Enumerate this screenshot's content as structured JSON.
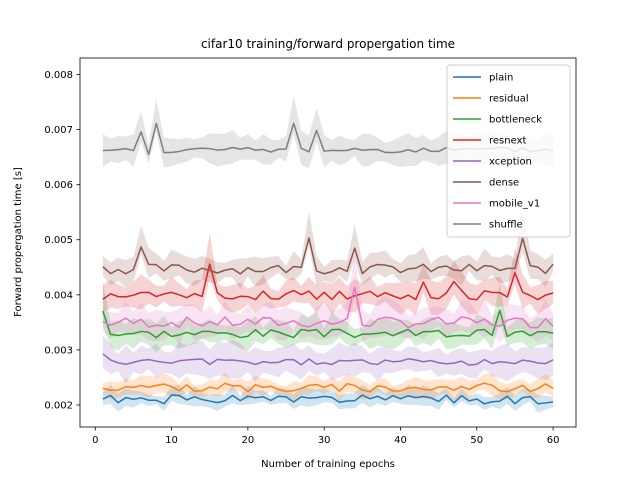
{
  "chart_data": {
    "type": "line",
    "title": "cifar10 training/forward propergation time",
    "xlabel": "Number of training epochs",
    "ylabel": "Forward propergation time [s]",
    "xlim": [
      -2,
      63
    ],
    "ylim": [
      0.0016,
      0.0083
    ],
    "xticks": [
      0,
      10,
      20,
      30,
      40,
      50,
      60
    ],
    "yticks": [
      0.002,
      0.003,
      0.004,
      0.005,
      0.006,
      0.007,
      0.008
    ],
    "yticklabels": [
      "0.002",
      "0.003",
      "0.004",
      "0.005",
      "0.006",
      "0.007",
      "0.008"
    ],
    "legend_position": "top-right",
    "grid": false,
    "series": [
      {
        "name": "plain",
        "color": "#1f77b4",
        "base": 0.0021,
        "amp": 8e-05,
        "band": 0.00025,
        "seed": 1,
        "spikes": []
      },
      {
        "name": "residual",
        "color": "#ff7f0e",
        "base": 0.00232,
        "amp": 8e-05,
        "band": 0.00028,
        "seed": 2,
        "spikes": [
          [
            12,
            0.00012
          ]
        ]
      },
      {
        "name": "bottleneck",
        "color": "#2ca02c",
        "base": 0.0033,
        "amp": 8e-05,
        "band": 0.0004,
        "seed": 3,
        "spikes": [
          [
            1,
            0.00045
          ],
          [
            53,
            0.00035
          ]
        ]
      },
      {
        "name": "resnext",
        "color": "#d62728",
        "base": 0.004,
        "amp": 9e-05,
        "band": 0.00045,
        "seed": 4,
        "spikes": [
          [
            15,
            0.00048
          ],
          [
            43,
            0.0003
          ],
          [
            47,
            0.00028
          ],
          [
            55,
            0.00032
          ]
        ]
      },
      {
        "name": "xception",
        "color": "#9467bd",
        "base": 0.00278,
        "amp": 6e-05,
        "band": 0.0005,
        "seed": 5,
        "spikes": [
          [
            1,
            0.0001
          ]
        ]
      },
      {
        "name": "dense",
        "color": "#8c564b",
        "base": 0.00447,
        "amp": 9e-05,
        "band": 0.0004,
        "seed": 6,
        "spikes": [
          [
            6,
            0.00035
          ],
          [
            28,
            0.00065
          ],
          [
            34,
            0.00045
          ],
          [
            56,
            0.0005
          ]
        ]
      },
      {
        "name": "mobile_v1",
        "color": "#e377c2",
        "base": 0.0035,
        "amp": 0.0001,
        "band": 0.0005,
        "seed": 7,
        "spikes": [
          [
            34,
            0.00065
          ]
        ]
      },
      {
        "name": "shuffle",
        "color": "#7f7f7f",
        "base": 0.00663,
        "amp": 5e-05,
        "band": 0.00045,
        "seed": 8,
        "spikes": [
          [
            6,
            0.0003
          ],
          [
            8,
            0.00048
          ],
          [
            26,
            0.00048
          ],
          [
            29,
            0.00035
          ],
          [
            7,
            -5e-05
          ]
        ]
      }
    ],
    "x": [
      1,
      2,
      3,
      4,
      5,
      6,
      7,
      8,
      9,
      10,
      11,
      12,
      13,
      14,
      15,
      16,
      17,
      18,
      19,
      20,
      21,
      22,
      23,
      24,
      25,
      26,
      27,
      28,
      29,
      30,
      31,
      32,
      33,
      34,
      35,
      36,
      37,
      38,
      39,
      40,
      41,
      42,
      43,
      44,
      45,
      46,
      47,
      48,
      49,
      50,
      51,
      52,
      53,
      54,
      55,
      56,
      57,
      58,
      59,
      60
    ]
  }
}
